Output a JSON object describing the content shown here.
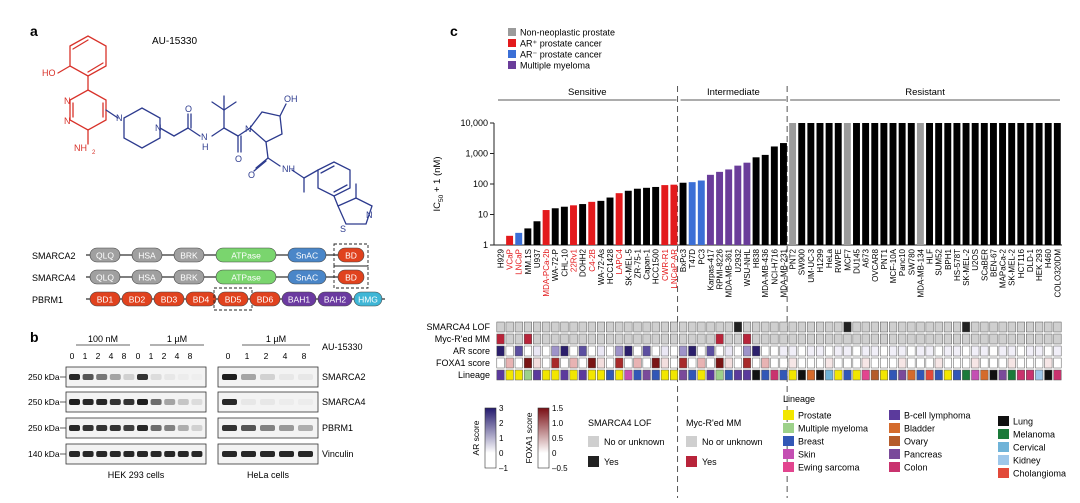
{
  "panel_a": {
    "letter": "a",
    "compound": "AU-15330",
    "atom_labels": {
      "ho": "HO",
      "nh2": "NH",
      "nh2_sub": "2",
      "oh": "OH",
      "nh": "NH",
      "n_pz1": "N",
      "n_pz2": "N",
      "n_pip1": "N",
      "n_pip2": "N",
      "n_amide1": "N",
      "h_amide1": "H",
      "o1": "O",
      "o2": "O",
      "o3": "O",
      "n_pro": "N",
      "n_thz": "N",
      "s_thz": "S"
    },
    "proteins": [
      {
        "name": "SMARCA2",
        "domains": [
          {
            "label": "QLQ",
            "color": "#a0a0a0"
          },
          {
            "label": "HSA",
            "color": "#a0a0a0"
          },
          {
            "label": "BRK",
            "color": "#a0a0a0"
          },
          {
            "label": "ATPase",
            "color": "#7ad56e"
          },
          {
            "label": "SnAC",
            "color": "#4a86c8"
          },
          {
            "label": "BD",
            "color": "#e0421e",
            "boxed": true
          }
        ]
      },
      {
        "name": "SMARCA4",
        "domains": [
          {
            "label": "QLQ",
            "color": "#a0a0a0"
          },
          {
            "label": "HSA",
            "color": "#a0a0a0"
          },
          {
            "label": "BRK",
            "color": "#a0a0a0"
          },
          {
            "label": "ATPase",
            "color": "#7ad56e"
          },
          {
            "label": "SnAC",
            "color": "#4a86c8"
          },
          {
            "label": "BD",
            "color": "#e0421e",
            "boxed": true
          }
        ]
      },
      {
        "name": "PBRM1",
        "domains": [
          {
            "label": "BD1",
            "color": "#e0421e"
          },
          {
            "label": "BD2",
            "color": "#e0421e"
          },
          {
            "label": "BD3",
            "color": "#e0421e"
          },
          {
            "label": "BD4",
            "color": "#e0421e"
          },
          {
            "label": "BD5",
            "color": "#e0421e",
            "boxed": true
          },
          {
            "label": "BD6",
            "color": "#e0421e"
          },
          {
            "label": "BAH1",
            "color": "#6b3aa0"
          },
          {
            "label": "BAH2",
            "color": "#6b3aa0"
          },
          {
            "label": "HMG",
            "color": "#3fb6d6"
          }
        ]
      }
    ]
  },
  "panel_b": {
    "letter": "b",
    "compound": "AU-15330",
    "groups": [
      {
        "label": "100 nM",
        "lanes": [
          "0",
          "1",
          "2",
          "4",
          "8"
        ]
      },
      {
        "label": "1 µM",
        "lanes": [
          "1",
          "2",
          "4",
          "8"
        ]
      },
      {
        "label": "1 µM",
        "lanes": [
          "0",
          "1",
          "2",
          "4",
          "8"
        ]
      }
    ],
    "mw_markers": [
      "250 kDa",
      "250 kDa",
      "250 kDa",
      "140 kDa"
    ],
    "bands": [
      "SMARCA2",
      "SMARCA4",
      "PBRM1",
      "Vinculin"
    ],
    "cell_lines": [
      "HEK 293 cells",
      "HeLa cells"
    ]
  },
  "chart_data": {
    "type": "bar",
    "panel_letter": "c",
    "ylabel_main": "IC",
    "ylabel_sub": "50",
    "ylabel_tail": " + 1 (nM)",
    "yscale": "log",
    "ylim": [
      1,
      10000
    ],
    "yticks": [
      "1",
      "10",
      "100",
      "1,000",
      "10,000"
    ],
    "category_groups": [
      "Sensitive",
      "Intermediate",
      "Resistant"
    ],
    "legend": [
      {
        "label": "Non-neoplastic prostate",
        "color": "#9b9b9b"
      },
      {
        "label": "AR⁺ prostate cancer",
        "color": "#e31a1c"
      },
      {
        "label": "AR⁻ prostate cancer",
        "color": "#3b6fd6"
      },
      {
        "label": "Multiple myeloma",
        "color": "#6a3d9a"
      }
    ],
    "colors": {
      "K": "#000000",
      "R": "#e31a1c",
      "B": "#3b6fd6",
      "P": "#6a3d9a",
      "G": "#9b9b9b"
    },
    "categories": [
      "H929",
      "VCaP",
      "LNCaP",
      "MM.1S",
      "U937",
      "MDA-PCa-2b",
      "WA-72-P",
      "CHL-10",
      "22Rv1",
      "DOHH2",
      "C4-2B",
      "WA-72-As",
      "HCC1428",
      "LAPC4",
      "SK-MEL-5",
      "ZR-75-1",
      "Capan-1",
      "HCC1500",
      "CWR-R1",
      "LNCaP-AR",
      "BxPc3",
      "T47D",
      "PC3",
      "Karpas-417",
      "RPMI-8226",
      "MDA-MB-361",
      "U2932",
      "WSU-NHL",
      "H838",
      "MDA-MB-436",
      "NCI-H716",
      "MDA-MB-231",
      "PNT2",
      "SW900",
      "UM-UC-3",
      "H1299",
      "HeLa",
      "RWPE",
      "MCF7",
      "DU145",
      "A673",
      "OVCAR8",
      "PNT1",
      "MCF-10A",
      "Panc10",
      "SW780",
      "MDA-MB-134",
      "HLF",
      "SUM52",
      "BPH1",
      "HS-578T",
      "SK-MEL-2",
      "U2OS",
      "SCaBER",
      "BEN-67",
      "MAPaCa-2",
      "SK-MEL-2",
      "HCT116",
      "DLD-1",
      "HEK 293",
      "H460",
      "COLO320DM"
    ],
    "values": [
      1,
      2,
      2.5,
      3.5,
      6,
      14,
      16,
      18,
      20,
      22,
      26,
      28,
      36,
      50,
      60,
      70,
      75,
      80,
      92,
      95,
      110,
      115,
      130,
      200,
      250,
      300,
      400,
      500,
      750,
      900,
      1700,
      2200,
      10000,
      10000,
      10000,
      10000,
      10000,
      10000,
      10000,
      10000,
      10000,
      10000,
      10000,
      10000,
      10000,
      10000,
      10000,
      10000,
      10000,
      10000,
      10000,
      10000,
      10000,
      10000,
      10000,
      10000,
      10000,
      10000,
      10000,
      10000,
      10000,
      10000
    ],
    "bar_colors": [
      "K",
      "R",
      "B",
      "K",
      "K",
      "R",
      "K",
      "K",
      "R",
      "K",
      "R",
      "K",
      "K",
      "R",
      "K",
      "K",
      "K",
      "K",
      "R",
      "R",
      "K",
      "B",
      "B",
      "P",
      "P",
      "P",
      "P",
      "P",
      "K",
      "K",
      "K",
      "K",
      "G",
      "K",
      "K",
      "K",
      "K",
      "K",
      "G",
      "K",
      "K",
      "K",
      "K",
      "K",
      "K",
      "K",
      "G",
      "K",
      "K",
      "K",
      "K",
      "K",
      "K",
      "K",
      "K",
      "K",
      "K",
      "K",
      "K",
      "K",
      "K",
      "K"
    ],
    "label_colors": [
      "K",
      "R",
      "R",
      "K",
      "K",
      "R",
      "K",
      "K",
      "R",
      "K",
      "R",
      "K",
      "K",
      "R",
      "K",
      "K",
      "K",
      "K",
      "R",
      "R",
      "K",
      "K",
      "K",
      "K",
      "K",
      "K",
      "K",
      "K",
      "K",
      "K",
      "K",
      "K",
      "K",
      "K",
      "K",
      "K",
      "K",
      "K",
      "K",
      "K",
      "K",
      "K",
      "K",
      "K",
      "K",
      "K",
      "K",
      "K",
      "K",
      "K",
      "K",
      "K",
      "K",
      "K",
      "K",
      "K",
      "K",
      "K",
      "K",
      "K",
      "K",
      "K"
    ],
    "annotation_rows": [
      "SMARCA4 LOF",
      "Myc-R'ed MM",
      "AR score",
      "FOXA1 score",
      "Lineage"
    ],
    "ar_scale": {
      "title": "AR score",
      "ticks": [
        "3",
        "2",
        "1",
        "0",
        "–1"
      ]
    },
    "foxa1_scale": {
      "title": "FOXA1 score",
      "ticks": [
        "1.5",
        "1.0",
        "0.5",
        "0",
        "–0.5"
      ]
    },
    "lof_legend": {
      "title": "SMARCA4 LOF",
      "items": [
        {
          "label": "No or unknown",
          "color": "#cfcfcf"
        },
        {
          "label": "Yes",
          "color": "#222222"
        }
      ]
    },
    "myc_legend": {
      "title": "Myc-R'ed MM",
      "items": [
        {
          "label": "No or unknown",
          "color": "#cfcfcf"
        },
        {
          "label": "Yes",
          "color": "#b8243a"
        }
      ]
    },
    "lineage_legend": {
      "title": "Lineage",
      "items": [
        {
          "label": "Prostate",
          "color": "#f2e600"
        },
        {
          "label": "B-cell lymphoma",
          "color": "#5b3a9c"
        },
        {
          "label": "Lung",
          "color": "#111111"
        },
        {
          "label": "Multiple myeloma",
          "color": "#9dd18a"
        },
        {
          "label": "Bladder",
          "color": "#d46b2c"
        },
        {
          "label": "Melanoma",
          "color": "#1a7a3a"
        },
        {
          "label": "Breast",
          "color": "#3257b6"
        },
        {
          "label": "Ovary",
          "color": "#b55c2a"
        },
        {
          "label": "Cervical",
          "color": "#6fb3d8"
        },
        {
          "label": "Skin",
          "color": "#c44fb3"
        },
        {
          "label": "Pancreas",
          "color": "#7a4a9a"
        },
        {
          "label": "Kidney",
          "color": "#9ec7ea"
        },
        {
          "label": "Ewing sarcoma",
          "color": "#e2458f"
        },
        {
          "label": "Colon",
          "color": "#c9326e"
        },
        {
          "label": "Cholangioma",
          "color": "#e24a3a"
        }
      ]
    }
  }
}
